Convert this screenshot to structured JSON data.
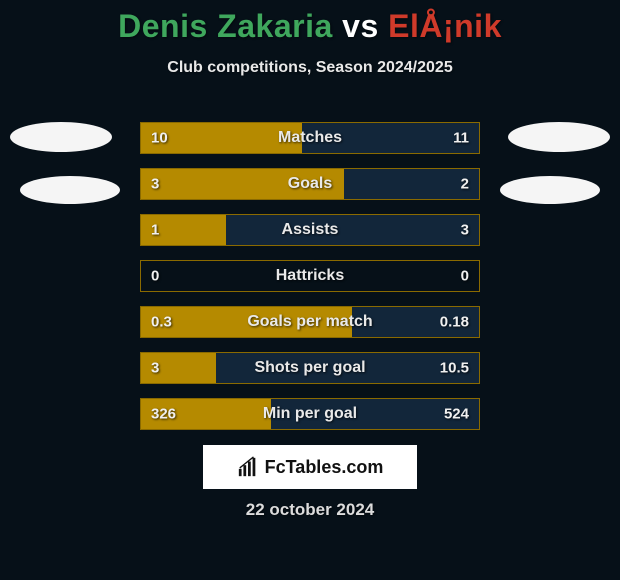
{
  "title_left": "Denis Zakaria",
  "title_vs": " vs ",
  "title_right": "ElÅ¡nik",
  "title_left_color": "#3fa75d",
  "title_right_color": "#cf3a2a",
  "subtitle": "Club competitions, Season 2024/2025",
  "background_color": "#061018",
  "row_border_color": "#8a6a00",
  "left_fill_color": "#b58a00",
  "right_fill_color": "#12263a",
  "text_color": "#e9e9e9",
  "rows": [
    {
      "label": "Matches",
      "left": "10",
      "right": "11",
      "left_pct": 47.6,
      "right_pct": 52.4
    },
    {
      "label": "Goals",
      "left": "3",
      "right": "2",
      "left_pct": 60.0,
      "right_pct": 40.0
    },
    {
      "label": "Assists",
      "left": "1",
      "right": "3",
      "left_pct": 25.0,
      "right_pct": 75.0
    },
    {
      "label": "Hattricks",
      "left": "0",
      "right": "0",
      "left_pct": 0.0,
      "right_pct": 0.0
    },
    {
      "label": "Goals per match",
      "left": "0.3",
      "right": "0.18",
      "left_pct": 62.5,
      "right_pct": 37.5
    },
    {
      "label": "Shots per goal",
      "left": "3",
      "right": "10.5",
      "left_pct": 22.2,
      "right_pct": 77.8
    },
    {
      "label": "Min per goal",
      "left": "326",
      "right": "524",
      "left_pct": 38.4,
      "right_pct": 61.6
    }
  ],
  "logo_text": "FcTables.com",
  "date": "22 october 2024",
  "avatar_bg": "#f5f5f5"
}
